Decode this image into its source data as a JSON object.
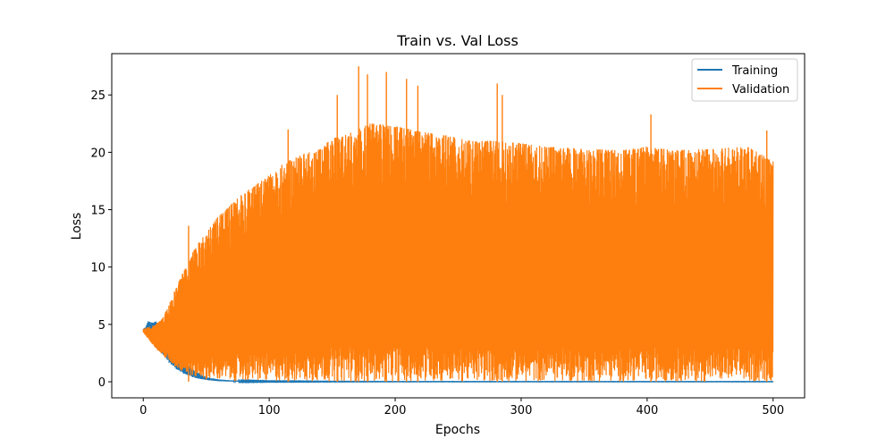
{
  "chart_data": {
    "type": "line",
    "title": "Train vs. Val Loss",
    "xlabel": "Epochs",
    "ylabel": "Loss",
    "xlim": [
      -25,
      525
    ],
    "ylim": [
      -1.4,
      28.6
    ],
    "xticks": [
      0,
      100,
      200,
      300,
      400,
      500
    ],
    "yticks": [
      0,
      5,
      10,
      15,
      20,
      25
    ],
    "legend_position": "upper right",
    "grid": false,
    "series": [
      {
        "name": "Training",
        "color": "#1f77b4",
        "description": "decays from ~4.6 to ~0 by epoch ~60; with brief oscillations up to ~5.3 around epochs 2-10",
        "x": [
          0,
          2,
          4,
          6,
          8,
          10,
          15,
          20,
          25,
          30,
          35,
          40,
          50,
          60,
          70,
          80,
          100,
          150,
          200,
          300,
          400,
          500
        ],
        "high": [
          4.6,
          4.8,
          5.3,
          5.2,
          5.3,
          5.3,
          4.5,
          3.7,
          2.8,
          2.1,
          1.6,
          1.0,
          0.4,
          0.2,
          0.12,
          0.08,
          0.05,
          0.03,
          0.02,
          0.02,
          0.02,
          0.02
        ],
        "low": [
          4.5,
          4.3,
          4.1,
          3.9,
          3.5,
          3.0,
          2.3,
          1.7,
          1.2,
          0.8,
          0.55,
          0.35,
          0.15,
          0.05,
          0.02,
          0.01,
          0.0,
          0.0,
          0.0,
          0.0,
          0.0,
          0.0
        ]
      },
      {
        "name": "Validation",
        "color": "#ff7f0e",
        "description": "oscillates between a lower bound near 0 and an upper envelope rising from ~4.6 to ~20-22 with spikes",
        "x": [
          0,
          2,
          5,
          10,
          15,
          20,
          25,
          30,
          35,
          40,
          50,
          60,
          70,
          80,
          90,
          100,
          110,
          120,
          130,
          140,
          150,
          160,
          170,
          180,
          190,
          200,
          220,
          240,
          260,
          280,
          300,
          320,
          350,
          380,
          400,
          420,
          450,
          480,
          500
        ],
        "high": [
          4.6,
          4.7,
          4.8,
          5.0,
          5.5,
          6.6,
          8.0,
          9.2,
          10.2,
          11.5,
          13.0,
          14.5,
          15.5,
          16.5,
          17.2,
          18.0,
          19.0,
          19.5,
          20.0,
          20.3,
          21.2,
          21.5,
          22.0,
          22.5,
          22.5,
          22.3,
          21.8,
          21.5,
          21.0,
          21.0,
          20.8,
          20.5,
          20.3,
          20.2,
          20.5,
          20.2,
          20.3,
          20.5,
          19.2
        ],
        "low": [
          4.3,
          4.0,
          3.6,
          2.9,
          2.3,
          1.8,
          1.3,
          0.9,
          0.6,
          0.4,
          0.2,
          0.1,
          0.05,
          0.02,
          0.01,
          0.0,
          0.0,
          0.0,
          0.0,
          0.0,
          0.0,
          0.0,
          0.0,
          0.0,
          0.0,
          0.0,
          0.0,
          0.0,
          0.0,
          0.0,
          0.0,
          0.0,
          0.0,
          0.0,
          0.0,
          0.0,
          0.0,
          0.0,
          0.0
        ],
        "spikes": [
          {
            "x": 36,
            "y": 13.6
          },
          {
            "x": 115,
            "y": 22.0
          },
          {
            "x": 154,
            "y": 25.0
          },
          {
            "x": 171,
            "y": 27.5
          },
          {
            "x": 178,
            "y": 26.8
          },
          {
            "x": 193,
            "y": 27.0
          },
          {
            "x": 209,
            "y": 26.4
          },
          {
            "x": 218,
            "y": 25.8
          },
          {
            "x": 281,
            "y": 26.0
          },
          {
            "x": 285,
            "y": 25.0
          },
          {
            "x": 403,
            "y": 23.3
          },
          {
            "x": 495,
            "y": 21.9
          }
        ]
      }
    ]
  }
}
